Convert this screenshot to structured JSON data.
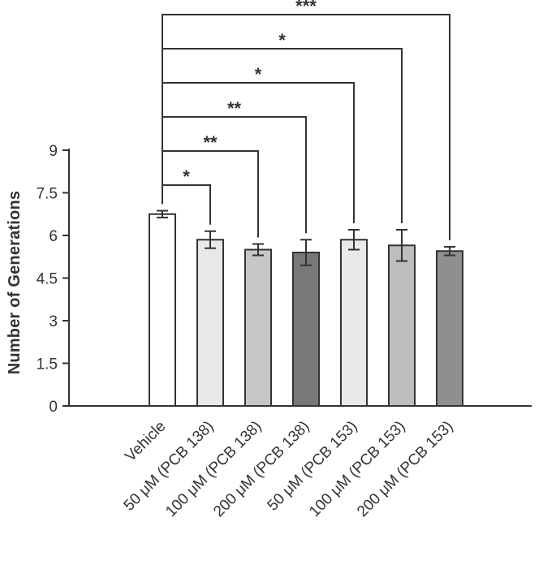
{
  "figure": {
    "background": "#ffffff"
  },
  "chart_data": {
    "type": "bar",
    "title": "",
    "xlabel": "",
    "ylabel": "Number of Generations",
    "ylim": [
      0,
      9
    ],
    "grid": false,
    "legend": "none",
    "yticks": [
      {
        "value": 0,
        "label": "0"
      },
      {
        "value": 1.5,
        "label": "1.5"
      },
      {
        "value": 3,
        "label": "3"
      },
      {
        "value": 4.5,
        "label": "4.5"
      },
      {
        "value": 6,
        "label": "6"
      },
      {
        "value": 7.5,
        "label": "7.5"
      },
      {
        "value": 9,
        "label": "9"
      }
    ],
    "categories": [
      "Vehicle",
      "50 μM (PCB 138)",
      "100 μM (PCB 138)",
      "200 μM (PCB 138)",
      "50 μM (PCB 153)",
      "100 μM (PCB 153)",
      "200 μM (PCB 153)"
    ],
    "values": [
      6.75,
      5.85,
      5.5,
      5.4,
      5.85,
      5.65,
      5.45
    ],
    "error_bars": [
      0.12,
      0.3,
      0.2,
      0.45,
      0.35,
      0.55,
      0.15
    ],
    "bar_colors": [
      "#ffffff",
      "#e9e9e9",
      "#c6c6c6",
      "#787878",
      "#e9e9e9",
      "#bdbdbd",
      "#8f8f8f"
    ],
    "bar_edge_color": "#333333",
    "axis_color": "#333333",
    "significance": [
      {
        "from": 0,
        "to": 1,
        "label": "*"
      },
      {
        "from": 0,
        "to": 2,
        "label": "**"
      },
      {
        "from": 0,
        "to": 3,
        "label": "**"
      },
      {
        "from": 0,
        "to": 4,
        "label": "*"
      },
      {
        "from": 0,
        "to": 5,
        "label": "*"
      },
      {
        "from": 0,
        "to": 6,
        "label": "***"
      }
    ]
  }
}
